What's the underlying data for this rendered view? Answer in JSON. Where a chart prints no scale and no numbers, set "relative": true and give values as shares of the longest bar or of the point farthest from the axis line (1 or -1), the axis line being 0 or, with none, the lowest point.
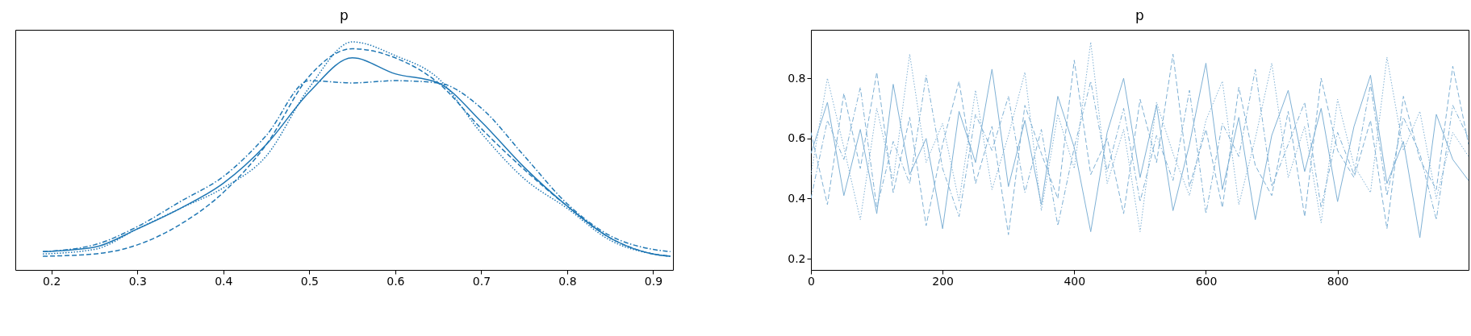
{
  "chart_data": [
    {
      "type": "line",
      "title": "p",
      "relative": true,
      "tick_labels": "x",
      "grid": false,
      "xlim": [
        0.158,
        0.923
      ],
      "xticks": [
        0.2,
        0.3,
        0.4,
        0.5,
        0.6,
        0.7,
        0.8,
        0.9
      ],
      "x": [
        0.19,
        0.25,
        0.3,
        0.35,
        0.4,
        0.45,
        0.5,
        0.55,
        0.6,
        0.65,
        0.7,
        0.75,
        0.8,
        0.85,
        0.9,
        0.92
      ],
      "series": [
        {
          "color": "#1f77b4",
          "line_style": "solid",
          "values": [
            0.08,
            0.1,
            0.18,
            0.27,
            0.38,
            0.55,
            0.78,
            0.93,
            0.86,
            0.82,
            0.65,
            0.45,
            0.28,
            0.14,
            0.07,
            0.06
          ]
        },
        {
          "color": "#1f77b4",
          "line_style": "dashed",
          "values": [
            0.06,
            0.07,
            0.11,
            0.2,
            0.34,
            0.55,
            0.85,
            0.97,
            0.93,
            0.82,
            0.62,
            0.44,
            0.28,
            0.14,
            0.07,
            0.06
          ]
        },
        {
          "color": "#1f77b4",
          "line_style": "dotted",
          "values": [
            0.07,
            0.09,
            0.18,
            0.27,
            0.36,
            0.5,
            0.8,
            1.0,
            0.94,
            0.84,
            0.6,
            0.4,
            0.27,
            0.13,
            0.07,
            0.06
          ]
        },
        {
          "color": "#1f77b4",
          "line_style": "dashdot",
          "values": [
            0.08,
            0.11,
            0.19,
            0.3,
            0.41,
            0.59,
            0.83,
            0.82,
            0.83,
            0.82,
            0.71,
            0.5,
            0.29,
            0.15,
            0.09,
            0.08
          ]
        }
      ]
    },
    {
      "type": "line",
      "title": "p",
      "grid": false,
      "xlim": [
        0,
        999
      ],
      "xticks": [
        0,
        200,
        400,
        600,
        800
      ],
      "ylim": [
        0.163,
        0.961
      ],
      "yticks": [
        0.2,
        0.4,
        0.6,
        0.8
      ],
      "x": [
        0,
        25,
        50,
        75,
        100,
        125,
        150,
        175,
        200,
        225,
        250,
        275,
        300,
        325,
        350,
        375,
        400,
        425,
        450,
        475,
        500,
        525,
        550,
        575,
        600,
        625,
        650,
        675,
        700,
        725,
        750,
        775,
        800,
        825,
        850,
        875,
        900,
        925,
        950,
        975,
        999
      ],
      "series": [
        {
          "color": "#7fb1d5",
          "line_style": "solid",
          "values": [
            0.55,
            0.72,
            0.41,
            0.63,
            0.35,
            0.78,
            0.48,
            0.6,
            0.3,
            0.69,
            0.52,
            0.83,
            0.44,
            0.66,
            0.38,
            0.74,
            0.57,
            0.29,
            0.62,
            0.8,
            0.47,
            0.71,
            0.36,
            0.58,
            0.85,
            0.43,
            0.67,
            0.33,
            0.61,
            0.76,
            0.49,
            0.7,
            0.39,
            0.64,
            0.81,
            0.45,
            0.59,
            0.27,
            0.68,
            0.53,
            0.46
          ]
        },
        {
          "color": "#7fb1d5",
          "line_style": "dashed",
          "values": [
            0.62,
            0.38,
            0.75,
            0.5,
            0.82,
            0.42,
            0.67,
            0.31,
            0.58,
            0.79,
            0.45,
            0.64,
            0.28,
            0.71,
            0.55,
            0.4,
            0.86,
            0.48,
            0.6,
            0.35,
            0.73,
            0.52,
            0.88,
            0.44,
            0.63,
            0.37,
            0.77,
            0.51,
            0.41,
            0.69,
            0.34,
            0.8,
            0.56,
            0.47,
            0.66,
            0.3,
            0.74,
            0.53,
            0.43,
            0.84,
            0.58
          ]
        },
        {
          "color": "#7fb1d5",
          "line_style": "dotted",
          "values": [
            0.48,
            0.8,
            0.57,
            0.33,
            0.7,
            0.46,
            0.88,
            0.52,
            0.65,
            0.39,
            0.76,
            0.43,
            0.61,
            0.82,
            0.36,
            0.68,
            0.5,
            0.92,
            0.45,
            0.63,
            0.29,
            0.72,
            0.55,
            0.41,
            0.66,
            0.79,
            0.38,
            0.6,
            0.85,
            0.47,
            0.64,
            0.32,
            0.73,
            0.51,
            0.42,
            0.87,
            0.56,
            0.69,
            0.4,
            0.62,
            0.54
          ]
        },
        {
          "color": "#7fb1d5",
          "line_style": "dashdot",
          "values": [
            0.4,
            0.66,
            0.53,
            0.77,
            0.37,
            0.59,
            0.45,
            0.81,
            0.5,
            0.34,
            0.68,
            0.56,
            0.74,
            0.42,
            0.63,
            0.31,
            0.57,
            0.79,
            0.49,
            0.7,
            0.39,
            0.61,
            0.46,
            0.76,
            0.35,
            0.65,
            0.54,
            0.83,
            0.44,
            0.58,
            0.72,
            0.37,
            0.62,
            0.48,
            0.78,
            0.41,
            0.67,
            0.55,
            0.33,
            0.71,
            0.6
          ]
        }
      ]
    }
  ]
}
